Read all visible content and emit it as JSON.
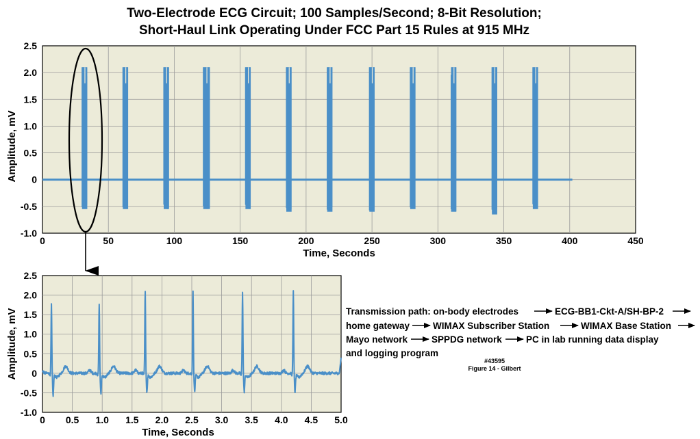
{
  "title": {
    "line1": "Two-Electrode ECG Circuit; 100 Samples/Second; 8-Bit Resolution;",
    "line2": "Short-Haul Link Operating Under FCC Part 15 Rules at 915 MHz"
  },
  "colors": {
    "plot_bg": "#ecebd9",
    "line": "#4a8fc8",
    "grid": "#9a9a9a"
  },
  "chart_data": [
    {
      "type": "line",
      "id": "overview",
      "xlabel": "Time,  Seconds",
      "ylabel": "Amplitude,  mV",
      "xlim": [
        0,
        450
      ],
      "ylim": [
        -1.0,
        2.5
      ],
      "xticks": [
        0,
        50,
        100,
        150,
        200,
        250,
        300,
        350,
        400,
        450
      ],
      "yticks": [
        -1.0,
        -0.5,
        0,
        0.5,
        1.0,
        1.5,
        2.0,
        2.5
      ],
      "xtick_labels": [
        "0",
        "50",
        "100",
        "150",
        "200",
        "250",
        "300",
        "350",
        "400",
        "450"
      ],
      "ytick_labels": [
        "-1.0",
        "-0.5",
        "0",
        "0.5",
        "1.0",
        "1.5",
        "2.0",
        "2.5"
      ],
      "baseline": 0,
      "trace_end": 402,
      "bursts": [
        {
          "start": 30,
          "end": 34,
          "max": 2.1,
          "min": -0.55
        },
        {
          "start": 61,
          "end": 65,
          "max": 2.1,
          "min": -0.55
        },
        {
          "start": 92,
          "end": 96,
          "max": 2.1,
          "min": -0.55
        },
        {
          "start": 122,
          "end": 127,
          "max": 2.1,
          "min": -0.55
        },
        {
          "start": 154,
          "end": 158,
          "max": 2.1,
          "min": -0.55
        },
        {
          "start": 185,
          "end": 189,
          "max": 2.1,
          "min": -0.6
        },
        {
          "start": 216,
          "end": 220,
          "max": 2.1,
          "min": -0.6
        },
        {
          "start": 248,
          "end": 252,
          "max": 2.1,
          "min": -0.6
        },
        {
          "start": 279,
          "end": 283,
          "max": 2.1,
          "min": -0.55
        },
        {
          "start": 310,
          "end": 314,
          "max": 2.1,
          "min": -0.6
        },
        {
          "start": 341,
          "end": 345,
          "max": 2.1,
          "min": -0.65
        },
        {
          "start": 372,
          "end": 376,
          "max": 2.1,
          "min": -0.55
        }
      ]
    },
    {
      "type": "line",
      "id": "detail",
      "xlabel": "Time,  Seconds",
      "ylabel": "Amplitude,  mV",
      "xlim": [
        0,
        5.0
      ],
      "ylim": [
        -1.0,
        2.5
      ],
      "xticks": [
        0,
        0.5,
        1.0,
        1.5,
        2.0,
        2.5,
        3.0,
        3.5,
        4.0,
        4.5,
        5.0
      ],
      "yticks": [
        -1.0,
        -0.5,
        0,
        0.5,
        1.0,
        1.5,
        2.0,
        2.5
      ],
      "xtick_labels": [
        "0",
        "0.5",
        "1.0",
        "1.5",
        "2.0",
        "2.5",
        "3.0",
        "3.5",
        "4.0",
        "4.5",
        "5.0"
      ],
      "ytick_labels": [
        "-1.0",
        "-0.5",
        "0",
        "0.5",
        "1.0",
        "1.5",
        "2.0",
        "2.5"
      ],
      "baseline": 0.0,
      "beats": [
        {
          "t": 0.15,
          "r": 1.75,
          "s": -0.55
        },
        {
          "t": 0.95,
          "r": 1.8,
          "s": -0.5
        },
        {
          "t": 1.72,
          "r": 2.1,
          "s": -0.45
        },
        {
          "t": 2.52,
          "r": 2.1,
          "s": -0.45
        },
        {
          "t": 3.35,
          "r": 2.1,
          "s": -0.45
        },
        {
          "t": 4.2,
          "r": 2.1,
          "s": -0.45
        }
      ],
      "end_value": 0.4
    }
  ],
  "annotation": {
    "lines": [
      "Transmission path:  on-body electrodes",
      "ECG-BB1-Ckt-A/SH-BP-2",
      "home gateway",
      "WIMAX Subscriber Station",
      "WIMAX Base Station",
      "Mayo network",
      "SPPDG network",
      "PC in lab running data display",
      "and logging program"
    ]
  },
  "figure_id": "#43595",
  "figure_caption": "Figure 14 - Gilbert"
}
